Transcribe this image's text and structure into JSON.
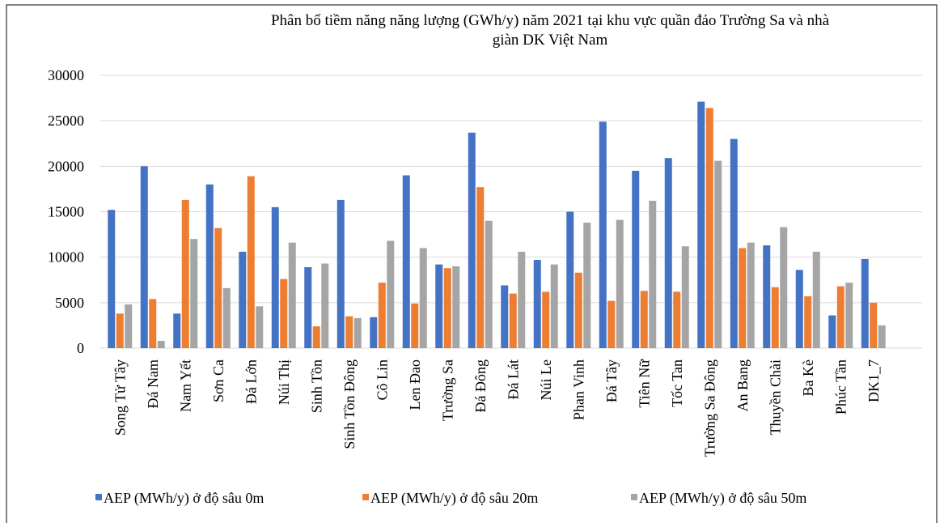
{
  "chart_data": {
    "type": "bar",
    "title": "Phân bố tiềm năng năng lượng (GWh/y) năm 2021 tại khu vực quần đảo Trường Sa và nhà giàn DK Việt Nam",
    "categories": [
      "Song Tử Tây",
      "Đá Nam",
      "Nam Yết",
      "Sơn Ca",
      "Đá Lớn",
      "Núi Thị",
      "Sinh Tồn",
      "Sinh Tồn Đông",
      "Cô Lin",
      "Len Đao",
      "Trường Sa",
      "Đá Đông",
      "Đá Lát",
      "Núi Le",
      "Phan Vinh",
      "Đá Tây",
      "Tiên Nữ",
      "Tốc Tan",
      "Trường Sa Đông",
      "An Bang",
      "Thuyền Chài",
      "Ba Kè",
      "Phúc Tần",
      "DK1_7"
    ],
    "series": [
      {
        "name": "AEP (MWh/y) ở độ sâu 0m",
        "color": "#4472c4",
        "values": [
          15200,
          20000,
          3800,
          18000,
          10600,
          15500,
          8900,
          16300,
          3400,
          19000,
          9200,
          23700,
          6900,
          9700,
          15000,
          24900,
          19500,
          20900,
          27100,
          23000,
          11300,
          8600,
          3600,
          9800
        ]
      },
      {
        "name": "AEP (MWh/y) ở độ sâu 20m",
        "color": "#ed7d31",
        "values": [
          3800,
          5400,
          16300,
          13200,
          18900,
          7600,
          2400,
          3500,
          7200,
          4900,
          8800,
          17700,
          6000,
          6200,
          8300,
          5200,
          6300,
          6200,
          26400,
          11000,
          6700,
          5700,
          6800,
          5000
        ]
      },
      {
        "name": "AEP (MWh/y) ở độ sâu 50m",
        "color": "#a5a5a5",
        "values": [
          4800,
          800,
          12000,
          6600,
          4600,
          11600,
          9300,
          3300,
          11800,
          11000,
          9000,
          14000,
          10600,
          9200,
          13800,
          14100,
          16200,
          11200,
          20600,
          11600,
          13300,
          10600,
          7200,
          2500
        ]
      }
    ],
    "ylim": [
      0,
      30000
    ],
    "yticks": [
      0,
      5000,
      10000,
      15000,
      20000,
      25000,
      30000
    ],
    "grid": true
  }
}
